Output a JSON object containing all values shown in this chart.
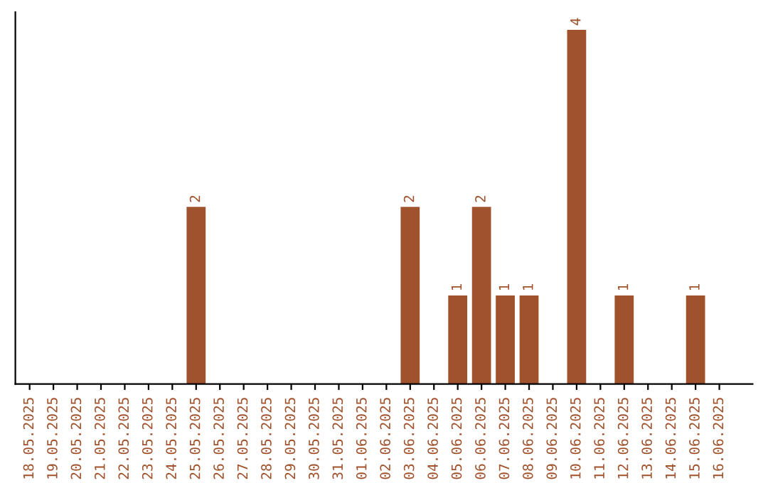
{
  "chart_data": {
    "type": "bar",
    "categories": [
      "18.05.2025",
      "19.05.2025",
      "20.05.2025",
      "21.05.2025",
      "22.05.2025",
      "23.05.2025",
      "24.05.2025",
      "25.05.2025",
      "26.05.2025",
      "27.05.2025",
      "28.05.2025",
      "29.05.2025",
      "30.05.2025",
      "31.05.2025",
      "01.06.2025",
      "02.06.2025",
      "03.06.2025",
      "04.06.2025",
      "05.06.2025",
      "06.06.2025",
      "07.06.2025",
      "08.06.2025",
      "09.06.2025",
      "10.06.2025",
      "11.06.2025",
      "12.06.2025",
      "13.06.2025",
      "14.06.2025",
      "15.06.2025",
      "16.06.2025"
    ],
    "values": [
      null,
      null,
      null,
      null,
      null,
      null,
      null,
      2,
      null,
      null,
      null,
      null,
      null,
      null,
      null,
      null,
      2,
      null,
      1,
      2,
      1,
      1,
      null,
      4,
      null,
      1,
      null,
      null,
      1,
      null
    ],
    "color": "#a0522d",
    "data_labels": true,
    "tick_labels": "x",
    "grid": false,
    "legend": false
  }
}
